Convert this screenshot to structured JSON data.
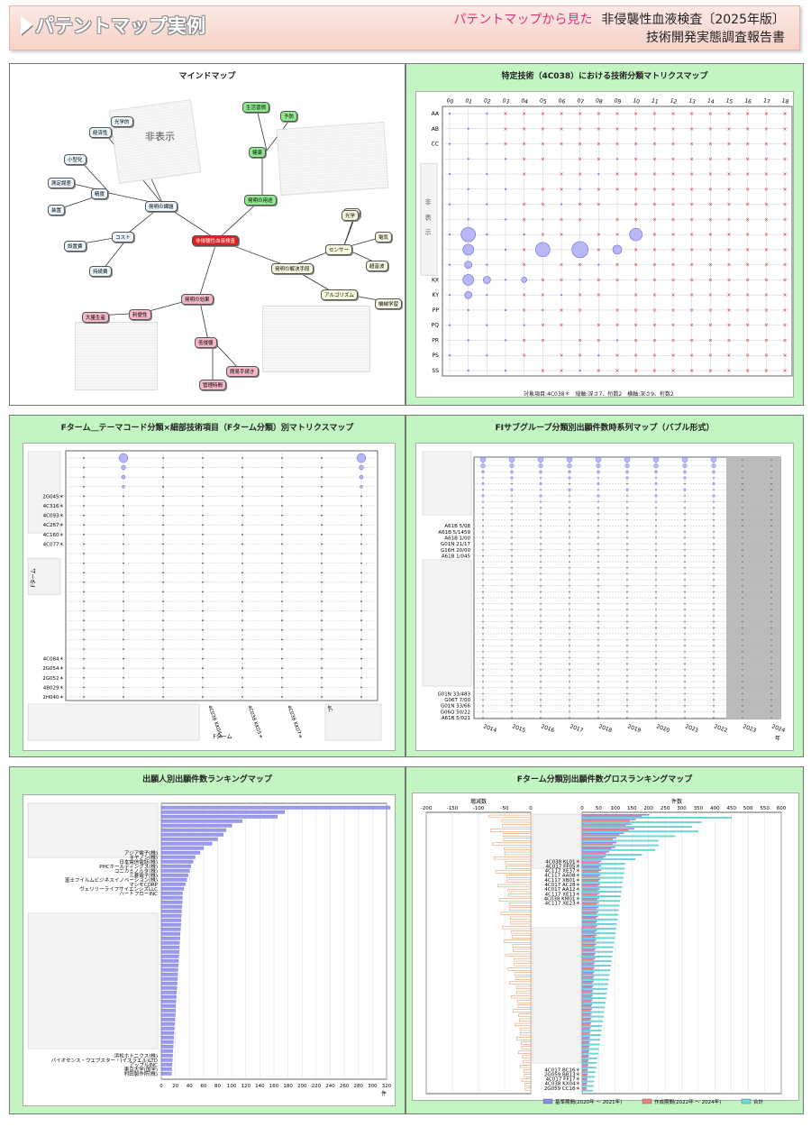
{
  "header": {
    "title": "パテントマップ実例",
    "subtitle_pink": "パテントマップから見た",
    "subtitle_main": "非侵襲性血液検査〔2025年版〕",
    "subtitle_line2": "技術開発実態調査報告書"
  },
  "mindmap": {
    "title": "マインドマップ",
    "hidden_label": "非表示",
    "center": "非侵襲性血液検査",
    "nodes": [
      "発明の課題",
      "発明の用途",
      "発明の解決手段",
      "発明の効果",
      "精度",
      "コスト",
      "センサー",
      "アルゴリズム",
      "低侵襲",
      "利便性",
      "皮膚",
      "光学",
      "電気",
      "超音波",
      "機械学習",
      "大量生産",
      "簡易手続き",
      "管理時間",
      "健康",
      "生活習慣",
      "予防",
      "光学的",
      "経済性",
      "小型化",
      "測定誤差",
      "装置",
      "設置費",
      "持続費"
    ]
  },
  "matrix1": {
    "title": "特定技術（4C038）における技術分類マトリクスマップ",
    "hidden_label": "非 表 示",
    "cols": [
      "00",
      "01",
      "02",
      "03",
      "04",
      "05",
      "06",
      "07",
      "08",
      "09",
      "10",
      "11",
      "12",
      "13",
      "14",
      "15",
      "16",
      "17",
      "18"
    ],
    "rows_top": [
      "AA",
      "AB",
      "CC"
    ],
    "rows_bottom": [
      "KX",
      "KY",
      "PP",
      "PQ",
      "PR",
      "PS",
      "SS"
    ],
    "footer": "対象項目:4C038＊　縦軸:深さ7、桁数2　横軸:深さ9、桁数2"
  },
  "fterm_matrix": {
    "title": "Fターム＿テーマコード分類×細部技術項目（Fターム分類）別マトリクスマップ",
    "ylabel": "Fターム",
    "xlabel": "Fターム",
    "rows_mid": [
      "2G045＊",
      "4C316＊",
      "4C093＊",
      "4C267＊",
      "4C160＊",
      "4C077＊"
    ],
    "rows_bottom": [
      "4C084＊",
      "2G054＊",
      "2G052＊",
      "4B029＊",
      "2H040＊"
    ],
    "cols": [
      "4C038 KK04＊",
      "4C038 KK05＊",
      "4C038 KK07＊",
      "4C"
    ]
  },
  "fi_timeseries": {
    "title": "FIサブグループ分類別出願件数時系列マップ（バブル形式）",
    "rows_mid": [
      "A61B 5/08",
      "A61B 5/1459",
      "A61B 1/00",
      "G01N 21/17",
      "G16H 20/00",
      "A61B 1/045",
      "A61B 5/01",
      "G01N 21/27",
      "A61B 5/05"
    ],
    "rows_bottom": [
      "G01N 33/483",
      "G06T 7/00",
      "G01N 33/66",
      "G06Q 50/22",
      "A61B 5/021"
    ],
    "years": [
      "2014",
      "2015",
      "2016",
      "2017",
      "2018",
      "2019",
      "2020",
      "2021",
      "2022",
      "2023",
      "2024"
    ],
    "xunit": "年"
  },
  "applicant_ranking": {
    "title": "出願人別出願件数ランキングマップ",
    "names_mid": [
      "アジア電子(株)",
      "キヤノン(株)",
      "日本電信電話(株)",
      "PHCホールディングス(株)",
      "コニカミノルタ(株)",
      "三菱電子(株)",
      "富士フイルムビジネスイノベーション(株)",
      "マシモCORP",
      "ヴェリリーライフサイエンシズLLC",
      "ハートフローINC"
    ],
    "names_bottom": [
      "浜松ホトニクス(株)",
      "バイオセンス・ウエブスター・(イスラエル)LTD",
      "アップルINC",
      "東京大学(国学)",
      "村田製作所(株)"
    ],
    "xticks": [
      "0",
      "20",
      "40",
      "60",
      "80",
      "100",
      "120",
      "140",
      "160",
      "180",
      "200",
      "220",
      "240",
      "260",
      "280",
      "300",
      "320"
    ],
    "xunit": "件"
  },
  "growth_ranking": {
    "title": "Fターム分類別出願件数グロスランキングマップ",
    "left_label": "増減数",
    "right_label": "件数",
    "left_ticks": [
      "-200",
      "-150",
      "-100",
      "-50",
      "0"
    ],
    "right_ticks": [
      "0",
      "50",
      "100",
      "150",
      "200",
      "250",
      "300",
      "350",
      "400",
      "450",
      "500",
      "550",
      "600"
    ],
    "labels_mid": [
      "4C038 KL01＊",
      "4C017 FF05＊",
      "4C117 XE37＊",
      "4C117 AA08＊",
      "4C117 XB01＊",
      "4C017 AC28＊",
      "4C017 AA12＊",
      "4C117 XE13＊",
      "4C038 KM01＊",
      "4C117 XE23＊"
    ],
    "labels_bottom": [
      "4C017 BC16＊",
      "2G059 BB13＊",
      "4C017 FF17＊",
      "4C038 KX04＊",
      "2G059 CC16＊"
    ],
    "legend": [
      "基準期間(2020年 〜 2021年)",
      "作成期間(2022年 〜 2024年)",
      "合計"
    ],
    "colors": {
      "base": "#8a8af0",
      "current": "#f08080",
      "total": "#66dddd"
    }
  },
  "chart_data": [
    {
      "type": "scatter",
      "title": "特定技術（4C038）における技術分類マトリクスマップ",
      "note": "bubble matrix, large bubbles near rows KX-KY and cols 01,05,07,10"
    },
    {
      "type": "scatter",
      "title": "Fターム＿テーマコード分類×細部技術項目（Fターム分類）別マトリクスマップ"
    },
    {
      "type": "scatter",
      "title": "FIサブグループ分類別出願件数時系列マップ（バブル形式）",
      "x": [
        "2014",
        "2015",
        "2016",
        "2017",
        "2018",
        "2019",
        "2020",
        "2021",
        "2022",
        "2023",
        "2024"
      ]
    },
    {
      "type": "bar",
      "title": "出願人別出願件数ランキングマップ",
      "values": [
        325,
        175,
        165,
        115,
        100,
        92,
        88,
        80,
        72,
        60,
        55,
        48,
        45,
        42,
        40,
        38,
        36,
        34,
        32,
        30
      ]
    },
    {
      "type": "bar",
      "title": "Fターム分類別出願件数グロスランキングマップ",
      "series": [
        {
          "name": "基準期間(2020年 〜 2021年)"
        },
        {
          "name": "作成期間(2022年 〜 2024年)"
        },
        {
          "name": "合計",
          "values": [
            450,
            360,
            330,
            350,
            280,
            230,
            230,
            220,
            180,
            160
          ]
        }
      ]
    }
  ]
}
